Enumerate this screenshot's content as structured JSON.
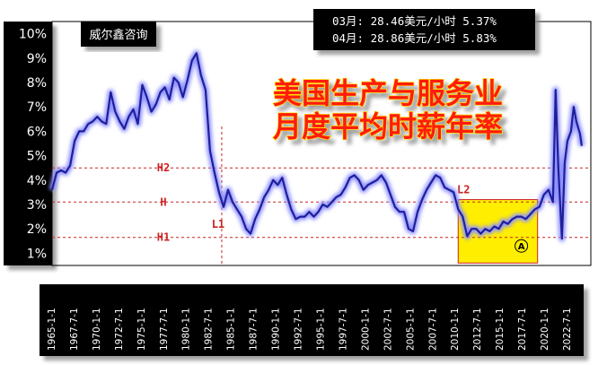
{
  "brand": "威尔鑫咨询",
  "info_box": {
    "line1": "03月: 28.46美元/小时 5.37%",
    "line2": "04月: 28.86美元/小时 5.83%"
  },
  "headline": {
    "line1": "美国生产与服务业",
    "line2": "月度平均时薪年率"
  },
  "colors": {
    "series_line": "#1f1f9a",
    "series_glow": "#8f92ff",
    "ref_line": "#cc2222",
    "ref_label": "#cc2222",
    "headline_fill": "#ff1a0a",
    "headline_stroke": "#ffe000",
    "highlight_box": "#ffee00",
    "frame": "#000000"
  },
  "chart_data": {
    "type": "line",
    "y_unit": "%",
    "ylim": [
      0.5,
      10.5
    ],
    "y_ticks": [
      "10%",
      "9%",
      "8%",
      "7%",
      "6%",
      "5%",
      "4%",
      "3%",
      "2%",
      "1%"
    ],
    "x_ticks": [
      "1965-1-1",
      "1967-7-1",
      "1970-1-1",
      "1972-7-1",
      "1975-1-1",
      "1977-7-1",
      "1980-1-1",
      "1982-7-1",
      "1985-1-1",
      "1987-7-1",
      "1990-1-1",
      "1992-7-1",
      "1995-1-1",
      "1997-7-1",
      "2000-1-1",
      "2002-7-1",
      "2005-1-1",
      "2007-7-1",
      "2010-1-1",
      "2012-7-1",
      "2015-1-1",
      "2017-7-1",
      "2020-1-1",
      "2022-7-1"
    ],
    "reference_lines": [
      {
        "label": "H2",
        "value": 4.5
      },
      {
        "label": "H",
        "value": 3.1
      },
      {
        "label": "H1",
        "value": 1.65
      }
    ],
    "markers": [
      {
        "label": "L1",
        "x": 1983.3
      },
      {
        "label": "L2",
        "x": 2009.5
      }
    ],
    "highlight": {
      "label": "A",
      "x_range": [
        2009.5,
        2018.3
      ],
      "y_range": [
        0.6,
        3.2
      ]
    },
    "series": [
      {
        "x": [
          1964.5,
          1965.0,
          1965.5,
          1966.0,
          1966.5,
          1967.0,
          1967.5,
          1968.0,
          1968.5,
          1969.0,
          1969.5,
          1970.0,
          1970.5,
          1971.0,
          1971.5,
          1972.0,
          1972.5,
          1973.0,
          1973.5,
          1974.0,
          1974.5,
          1975.0,
          1975.5,
          1976.0,
          1976.5,
          1977.0,
          1977.5,
          1978.0,
          1978.5,
          1979.0,
          1979.5,
          1980.0,
          1980.5,
          1981.0,
          1981.5,
          1982.0,
          1982.5,
          1983.0,
          1983.5,
          1984.0,
          1984.5,
          1985.0,
          1985.5,
          1986.0,
          1986.5,
          1987.0,
          1987.5,
          1988.0,
          1988.5,
          1989.0,
          1989.5,
          1990.0,
          1990.5,
          1991.0,
          1991.5,
          1992.0,
          1992.5,
          1993.0,
          1993.5,
          1994.0,
          1994.5,
          1995.0,
          1995.5,
          1996.0,
          1996.5,
          1997.0,
          1997.5,
          1998.0,
          1998.5,
          1999.0,
          1999.5,
          2000.0,
          2000.5,
          2001.0,
          2001.5,
          2002.0,
          2002.5,
          2003.0,
          2003.5,
          2004.0,
          2004.5,
          2005.0,
          2005.5,
          2006.0,
          2006.5,
          2007.0,
          2007.5,
          2008.0,
          2008.5,
          2009.0,
          2009.5,
          2010.0,
          2010.5,
          2011.0,
          2011.5,
          2012.0,
          2012.5,
          2013.0,
          2013.5,
          2014.0,
          2014.5,
          2015.0,
          2015.5,
          2016.0,
          2016.5,
          2017.0,
          2017.5,
          2018.0,
          2018.5,
          2019.0,
          2019.5,
          2020.0,
          2020.3,
          2020.6,
          2021.0,
          2021.3,
          2021.6,
          2022.0,
          2022.3,
          2022.6,
          2023.0,
          2023.2
        ],
        "values": [
          3.6,
          4.3,
          4.4,
          4.3,
          4.6,
          5.6,
          6.0,
          6.0,
          6.3,
          6.4,
          6.6,
          6.4,
          6.3,
          7.6,
          6.8,
          6.4,
          6.1,
          6.6,
          6.9,
          6.3,
          7.9,
          7.4,
          6.8,
          7.1,
          7.6,
          7.8,
          7.3,
          8.2,
          8.0,
          7.4,
          8.1,
          8.9,
          9.2,
          8.3,
          7.7,
          5.2,
          4.3,
          3.5,
          2.9,
          3.6,
          3.1,
          2.8,
          2.5,
          2.0,
          1.8,
          2.4,
          2.8,
          3.3,
          3.6,
          4.0,
          3.8,
          4.1,
          3.4,
          2.8,
          2.4,
          2.5,
          2.5,
          2.7,
          2.5,
          2.7,
          3.0,
          2.9,
          3.1,
          3.3,
          3.4,
          3.7,
          4.1,
          4.2,
          4.0,
          3.6,
          3.8,
          3.9,
          4.0,
          4.2,
          3.9,
          3.4,
          2.9,
          2.7,
          2.7,
          2.0,
          1.9,
          2.7,
          3.2,
          3.6,
          3.9,
          4.2,
          4.1,
          3.7,
          3.6,
          3.5,
          2.8,
          2.5,
          1.7,
          2.0,
          2.0,
          1.8,
          2.0,
          1.9,
          2.1,
          2.0,
          2.3,
          2.2,
          2.4,
          2.5,
          2.5,
          2.4,
          2.6,
          2.8,
          2.9,
          3.4,
          3.6,
          3.1,
          7.7,
          4.5,
          1.6,
          4.7,
          5.6,
          6.0,
          7.0,
          6.4,
          5.9,
          5.4
        ]
      }
    ]
  }
}
